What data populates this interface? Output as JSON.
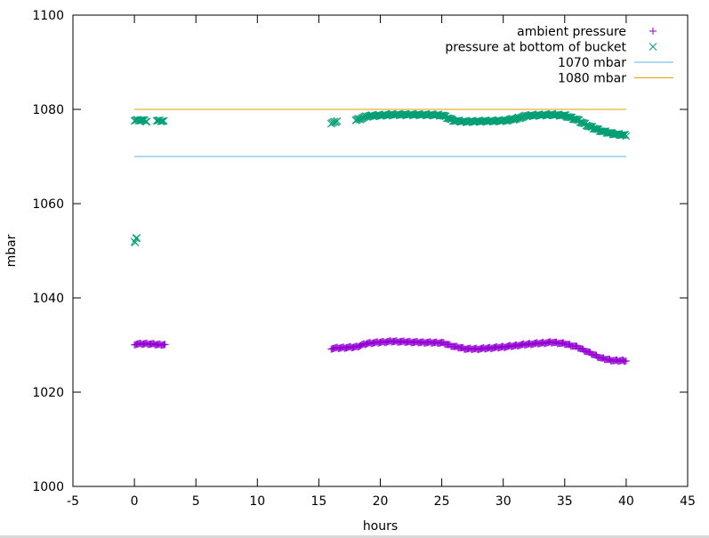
{
  "chart_data": {
    "type": "scatter",
    "title": "",
    "xlabel": "hours",
    "ylabel": "mbar",
    "xlim": [
      -5,
      45
    ],
    "ylim": [
      1000,
      1100
    ],
    "x_ticks": [
      -5,
      0,
      5,
      10,
      15,
      20,
      25,
      30,
      35,
      40,
      45
    ],
    "y_ticks": [
      1000,
      1020,
      1040,
      1060,
      1080,
      1100
    ],
    "grid": false,
    "legend_position": "top-right",
    "series": [
      {
        "name": "ambient pressure",
        "marker": "plus",
        "color": "#9400d3",
        "segments": [
          {
            "x_start": 0,
            "x_end": 2.5,
            "y": [
              [
                0,
                1030.2
              ],
              [
                1,
                1030.3
              ],
              [
                2,
                1030.1
              ],
              [
                2.5,
                1030.1
              ]
            ]
          },
          {
            "x_start": 16,
            "x_end": 40,
            "y": [
              [
                16,
                1029.3
              ],
              [
                18,
                1029.6
              ],
              [
                19,
                1030.4
              ],
              [
                21,
                1030.8
              ],
              [
                23,
                1030.6
              ],
              [
                25,
                1030.5
              ],
              [
                26,
                1029.7
              ],
              [
                27,
                1029.2
              ],
              [
                28,
                1029.2
              ],
              [
                30,
                1029.6
              ],
              [
                32,
                1030.2
              ],
              [
                34,
                1030.6
              ],
              [
                35,
                1030.3
              ],
              [
                36,
                1029.6
              ],
              [
                37,
                1028.4
              ],
              [
                38,
                1027.2
              ],
              [
                39,
                1026.7
              ],
              [
                40,
                1026.7
              ]
            ]
          }
        ]
      },
      {
        "name": "pressure at bottom of bucket",
        "marker": "cross",
        "color": "#009e73",
        "segments": [
          {
            "x_start": 0,
            "x_end": 0.2,
            "y": [
              [
                0,
                1052
              ],
              [
                0.05,
                1051.3
              ],
              [
                0.1,
                1052.6
              ]
            ]
          },
          {
            "x_start": 0,
            "x_end": 1,
            "y": [
              [
                0,
                1077.6
              ],
              [
                0.5,
                1077.8
              ],
              [
                1,
                1077.5
              ]
            ]
          },
          {
            "x_start": 1.8,
            "x_end": 2.4,
            "y": [
              [
                1.8,
                1077.6
              ],
              [
                2.4,
                1077.6
              ]
            ]
          },
          {
            "x_start": 16,
            "x_end": 16.5,
            "y": [
              [
                16,
                1077.0
              ],
              [
                16.5,
                1077.6
              ]
            ]
          },
          {
            "x_start": 18,
            "x_end": 40,
            "y": [
              [
                18,
                1077.7
              ],
              [
                19,
                1078.6
              ],
              [
                21,
                1078.9
              ],
              [
                23,
                1078.9
              ],
              [
                25,
                1078.8
              ],
              [
                26,
                1077.6
              ],
              [
                27,
                1077.4
              ],
              [
                28,
                1077.5
              ],
              [
                30,
                1077.6
              ],
              [
                31,
                1078.0
              ],
              [
                32,
                1078.7
              ],
              [
                34,
                1078.9
              ],
              [
                35,
                1078.7
              ],
              [
                36,
                1077.8
              ],
              [
                37,
                1076.4
              ],
              [
                38,
                1075.4
              ],
              [
                39,
                1074.8
              ],
              [
                40,
                1074.5
              ]
            ]
          }
        ]
      },
      {
        "name": "1070 mbar",
        "type": "line",
        "color": "#56b4e9",
        "x": [
          0,
          40
        ],
        "y": [
          1070,
          1070
        ]
      },
      {
        "name": "1080 mbar",
        "type": "line",
        "color": "#e69f00",
        "x": [
          0,
          40
        ],
        "y": [
          1080,
          1080
        ]
      }
    ]
  }
}
